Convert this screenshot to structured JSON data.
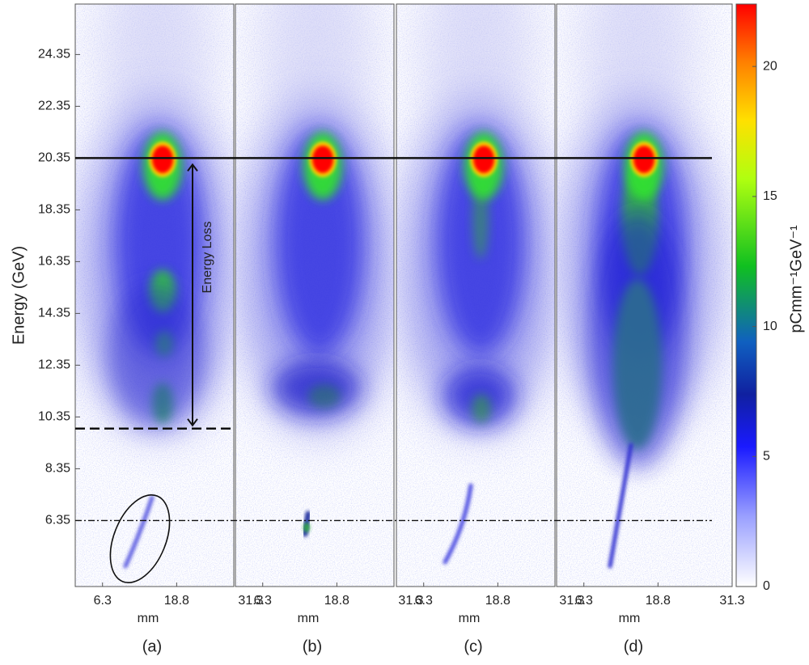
{
  "chart_data": {
    "type": "heatmap",
    "ylabel": "Energy (GeV)",
    "xlabel": "mm",
    "ylim": [
      3.8,
      26.3
    ],
    "yticks": [
      6.35,
      8.35,
      10.35,
      12.35,
      14.35,
      16.35,
      18.35,
      20.35,
      22.35,
      24.35
    ],
    "xlim": [
      1.7,
      31.3
    ],
    "xticks": [
      6.3,
      18.8,
      31.3
    ],
    "panels": [
      "(a)",
      "(b)",
      "(c)",
      "(d)"
    ],
    "reference_lines": [
      20.35,
      9.9,
      6.35
    ],
    "annotation": {
      "text": "Energy Loss",
      "from": 20.35,
      "to": 9.9
    },
    "colorbar": {
      "label": "pCmm⁻¹GeV⁻¹",
      "lim": [
        0,
        22.4
      ],
      "ticks": [
        0,
        5,
        10,
        15,
        20
      ]
    }
  }
}
